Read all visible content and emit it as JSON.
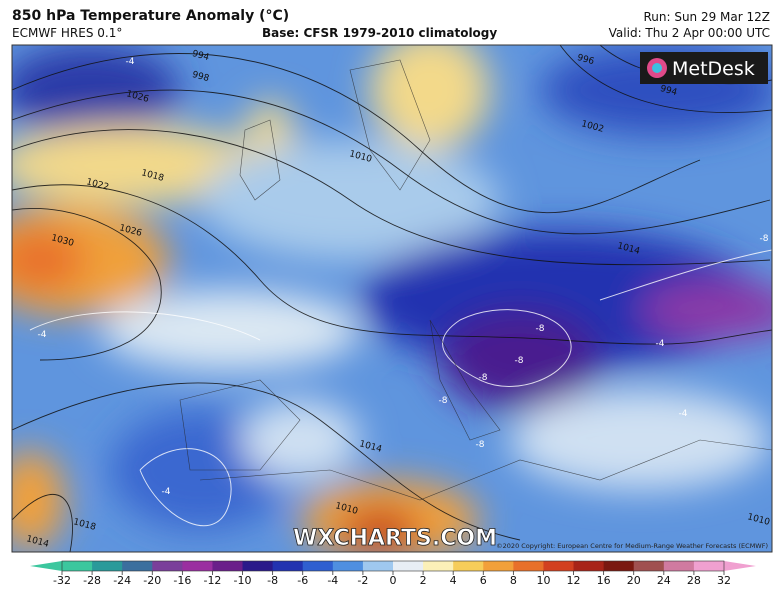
{
  "header": {
    "title": "850 hPa Temperature Anomaly (°C)",
    "model": "ECMWF HRES 0.1°",
    "base": "Base: CFSR 1979-2010 climatology",
    "run": "Run: Sun 29 Mar 12Z",
    "valid": "Valid: Thu 2 Apr 00:00 UTC"
  },
  "map": {
    "brand": "MetDesk",
    "watermark": "WXCHARTS.COM",
    "copyright": "©2020 Copyright: European Centre for Medium-Range Weather Forecasts (ECMWF)",
    "isobar_labels": [
      994,
      998,
      1026,
      1018,
      1022,
      1030,
      1026,
      1010,
      1014,
      1010,
      1014,
      1018,
      996,
      994,
      1002,
      1014,
      1010
    ],
    "anomaly_labels": [
      -4,
      -4,
      -8,
      -8,
      -8,
      -8,
      -8,
      -8,
      -4,
      -4,
      -4
    ]
  },
  "colorbar": {
    "ticks": [
      -32,
      -28,
      -24,
      -20,
      -16,
      -12,
      -10,
      -8,
      -6,
      -4,
      -2,
      0,
      2,
      4,
      6,
      8,
      10,
      12,
      16,
      20,
      24,
      28,
      32
    ],
    "colors": [
      "#3cc79e",
      "#2a9a9a",
      "#3b6f9e",
      "#7a3f9a",
      "#9a2fa0",
      "#6a1f8a",
      "#2a1a8a",
      "#2233b0",
      "#2f5fd0",
      "#4f8fe0",
      "#9fc8ef",
      "#e8eef5",
      "#fbf0b8",
      "#f6cd5a",
      "#f2a03a",
      "#e8702a",
      "#d24020",
      "#a82418",
      "#7a1810",
      "#a05050",
      "#d07aa0",
      "#f0a0d0"
    ]
  }
}
